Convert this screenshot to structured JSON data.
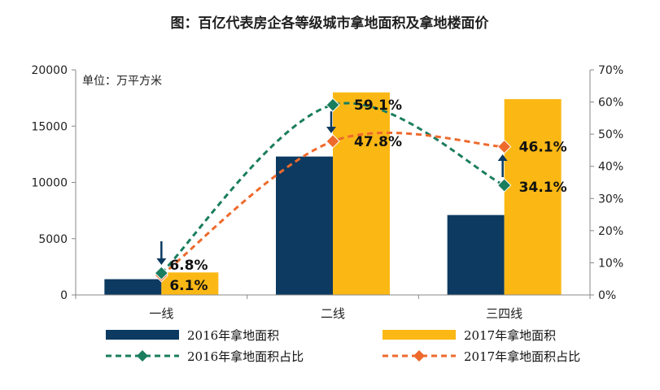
{
  "chart_data": {
    "type": "bar",
    "title": "图：百亿代表房企各等级城市拿地面积及拿地楼面价",
    "unit_label": "单位：万平方米",
    "categories": [
      "一线",
      "二线",
      "三四线"
    ],
    "left_axis": {
      "ylim": [
        0,
        20000
      ],
      "ticks": [
        "0",
        "5000",
        "10000",
        "15000",
        "20000"
      ]
    },
    "right_axis": {
      "ylim": [
        0,
        70
      ],
      "ticks": [
        "0%",
        "10%",
        "20%",
        "30%",
        "40%",
        "50%",
        "60%",
        "70%"
      ]
    },
    "bar_series": [
      {
        "name": "2016年拿地面积",
        "color": "#0c3a61",
        "values": [
          1400,
          12300,
          7100
        ]
      },
      {
        "name": "2017年拿地面积",
        "color": "#fbb815",
        "values": [
          2000,
          18000,
          17400
        ]
      }
    ],
    "line_series": [
      {
        "name": "2016年拿地面积占比",
        "color": "#1a7d5e",
        "marker": "diamond",
        "values": [
          6.8,
          59.1,
          34.1
        ],
        "labels": [
          "6.8%",
          "59.1%",
          "34.1%"
        ]
      },
      {
        "name": "2017年拿地面积占比",
        "color": "#ee6a2c",
        "marker": "diamond",
        "values": [
          6.1,
          47.8,
          46.1
        ],
        "labels": [
          "6.1%",
          "47.8%",
          "46.1%"
        ]
      }
    ],
    "annotations": [
      {
        "type": "arrow",
        "category": "一线",
        "direction": "down"
      },
      {
        "type": "arrow",
        "category": "二线",
        "direction": "down"
      },
      {
        "type": "arrow",
        "category": "三四线",
        "direction": "up"
      }
    ],
    "grid": false,
    "legend_position": "bottom"
  }
}
